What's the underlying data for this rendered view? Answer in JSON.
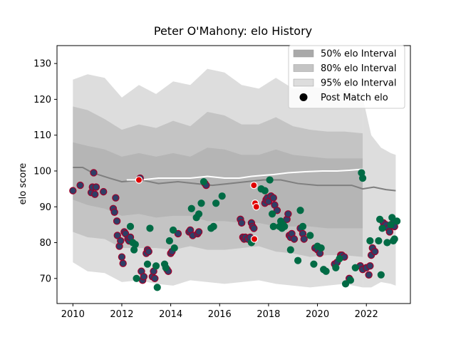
{
  "chart_data": {
    "type": "scatter",
    "title": "Peter O'Mahony: elo History",
    "xlabel": "",
    "ylabel": "elo score",
    "xlim": [
      2009.35,
      2023.8
    ],
    "ylim": [
      63,
      135
    ],
    "x_ticks": [
      2010,
      2012,
      2014,
      2016,
      2018,
      2020,
      2022
    ],
    "y_ticks": [
      70,
      80,
      90,
      100,
      110,
      120,
      130
    ],
    "grid": false,
    "legend_position": "top-right",
    "colors": {
      "band50": "#a9a9a9",
      "band80": "#c4c4c4",
      "band95": "#dddddd",
      "median_line": "#7f7f7f",
      "post_match_line": "#ffffff",
      "dot_navy": "#2f3f66",
      "dot_green": "#006b45",
      "dot_red": "#e00000",
      "dot_edge_crimson": "#a0002a"
    },
    "legend": [
      {
        "label": "50% elo Interval",
        "kind": "patch",
        "color": "#a9a9a9"
      },
      {
        "label": "80% elo Interval",
        "kind": "patch",
        "color": "#c4c4c4"
      },
      {
        "label": "95% elo Interval",
        "kind": "patch",
        "color": "#dddddd"
      },
      {
        "label": "Post Match elo",
        "kind": "marker",
        "color": "#000000"
      }
    ],
    "bands": {
      "x": [
        2010.0,
        2010.6,
        2011.3,
        2012.0,
        2012.7,
        2013.4,
        2014.1,
        2014.8,
        2015.5,
        2016.2,
        2016.9,
        2017.6,
        2018.3,
        2019.0,
        2019.7,
        2020.4,
        2021.1,
        2021.85
      ],
      "band95_upper": [
        125.5,
        127.0,
        126.0,
        120.5,
        124.0,
        121.5,
        125.0,
        124.0,
        128.5,
        127.5,
        124.0,
        123.0,
        126.0,
        123.0,
        123.5,
        123.0,
        122.5,
        121.5
      ],
      "band95_lower": [
        74.5,
        72.0,
        71.5,
        69.0,
        69.5,
        68.5,
        68.0,
        69.5,
        69.0,
        68.5,
        69.0,
        69.5,
        68.5,
        68.0,
        67.5,
        68.0,
        68.5,
        67.5
      ],
      "band80_upper": [
        118.0,
        117.0,
        114.5,
        111.5,
        113.0,
        112.0,
        114.0,
        112.5,
        116.5,
        115.5,
        113.0,
        113.0,
        115.0,
        112.5,
        111.5,
        111.0,
        111.0,
        110.5
      ],
      "band80_lower": [
        83.0,
        81.5,
        81.0,
        78.5,
        78.5,
        78.5,
        78.0,
        79.0,
        78.0,
        78.0,
        78.5,
        79.0,
        77.5,
        77.0,
        76.0,
        76.5,
        76.5,
        76.0
      ],
      "band50_upper": [
        108.0,
        107.0,
        106.0,
        104.0,
        105.0,
        104.0,
        105.0,
        104.0,
        106.5,
        106.0,
        104.5,
        104.5,
        106.0,
        104.5,
        104.0,
        103.5,
        103.5,
        103.5
      ],
      "band50_lower": [
        92.0,
        90.5,
        89.5,
        87.5,
        88.0,
        87.0,
        87.5,
        87.5,
        86.0,
        86.0,
        85.5,
        85.5,
        84.5,
        84.5,
        84.5,
        84.0,
        84.0,
        84.0
      ],
      "tail_x": [
        2021.85,
        2022.2,
        2022.6,
        2023.0,
        2023.2
      ],
      "tail95_upper": [
        120.5,
        110.0,
        106.5,
        105.0,
        104.5
      ],
      "tail95_lower": [
        67.5,
        67.5,
        69.0,
        68.5,
        68.0
      ]
    },
    "median_line": {
      "x": [
        2010.0,
        2010.4,
        2010.8,
        2011.5,
        2012.0,
        2012.8,
        2013.5,
        2014.3,
        2015.0,
        2015.7,
        2016.4,
        2017.1,
        2017.8,
        2018.5,
        2019.2,
        2020.0,
        2020.7,
        2021.4,
        2021.85,
        2022.3,
        2022.8,
        2023.2
      ],
      "y": [
        101.0,
        101.0,
        99.5,
        98.0,
        97.0,
        97.5,
        96.5,
        97.0,
        96.5,
        96.0,
        96.5,
        97.0,
        97.5,
        97.5,
        96.5,
        96.0,
        96.0,
        96.0,
        95.0,
        95.5,
        94.8,
        94.5
      ]
    },
    "post_match_line": {
      "x": [
        2012.2,
        2012.8,
        2013.5,
        2014.2,
        2014.8,
        2015.5,
        2016.2,
        2016.8,
        2017.3,
        2017.8,
        2018.2,
        2018.8,
        2019.5,
        2020.2,
        2020.8,
        2021.3,
        2021.85
      ],
      "y": [
        97.5,
        97.5,
        98.0,
        98.0,
        98.0,
        98.5,
        98.0,
        98.0,
        98.5,
        98.8,
        99.0,
        99.5,
        99.8,
        100.0,
        100.0,
        100.2,
        100.5
      ]
    },
    "points": {
      "navy": [
        [
          2010.0,
          94.5
        ],
        [
          2010.3,
          96.0
        ],
        [
          2010.75,
          94.0
        ],
        [
          2010.8,
          95.5
        ],
        [
          2010.85,
          99.5
        ],
        [
          2010.9,
          93.5
        ],
        [
          2010.95,
          95.5
        ],
        [
          2011.25,
          94.2
        ],
        [
          2011.65,
          89.5
        ],
        [
          2011.7,
          88.5
        ],
        [
          2011.75,
          92.5
        ],
        [
          2011.8,
          86.0
        ],
        [
          2011.82,
          82.0
        ],
        [
          2011.9,
          79.0
        ],
        [
          2011.95,
          80.5
        ],
        [
          2012.0,
          76.0
        ],
        [
          2012.05,
          74.2
        ],
        [
          2012.1,
          83.0
        ],
        [
          2012.15,
          82.5
        ],
        [
          2012.25,
          81.0
        ],
        [
          2012.3,
          80.5
        ],
        [
          2012.35,
          81.5
        ],
        [
          2012.75,
          98.0
        ],
        [
          2012.8,
          72.0
        ],
        [
          2012.85,
          69.5
        ],
        [
          2012.9,
          70.5
        ],
        [
          2013.0,
          77.0
        ],
        [
          2013.05,
          78.0
        ],
        [
          2013.1,
          77.5
        ],
        [
          2013.25,
          70.5
        ],
        [
          2013.3,
          72.0
        ],
        [
          2013.35,
          70.0
        ],
        [
          2013.85,
          72.5
        ],
        [
          2013.9,
          72.0
        ],
        [
          2014.0,
          77.0
        ],
        [
          2014.05,
          77.5
        ],
        [
          2014.3,
          82.5
        ],
        [
          2014.75,
          83.0
        ],
        [
          2014.8,
          83.5
        ],
        [
          2014.9,
          82.0
        ],
        [
          2015.1,
          82.5
        ],
        [
          2015.15,
          83.0
        ],
        [
          2015.4,
          96.5
        ],
        [
          2015.45,
          96.0
        ],
        [
          2016.85,
          86.5
        ],
        [
          2016.9,
          85.5
        ],
        [
          2016.95,
          81.5
        ],
        [
          2017.0,
          81.0
        ],
        [
          2017.05,
          81.5
        ],
        [
          2017.15,
          81.0
        ],
        [
          2017.25,
          81.5
        ],
        [
          2017.3,
          85.5
        ],
        [
          2017.35,
          84.5
        ],
        [
          2017.4,
          84.0
        ],
        [
          2017.85,
          91.0
        ],
        [
          2017.9,
          92.0
        ],
        [
          2017.95,
          92.5
        ],
        [
          2018.0,
          91.5
        ],
        [
          2018.1,
          93.0
        ],
        [
          2018.2,
          92.5
        ],
        [
          2018.25,
          90.5
        ],
        [
          2018.35,
          89.0
        ],
        [
          2018.75,
          86.5
        ],
        [
          2018.8,
          88.0
        ],
        [
          2018.85,
          82.0
        ],
        [
          2018.9,
          81.5
        ],
        [
          2018.95,
          82.5
        ],
        [
          2019.05,
          81.0
        ],
        [
          2019.3,
          84.0
        ],
        [
          2019.4,
          82.5
        ],
        [
          2019.45,
          81.0
        ],
        [
          2019.9,
          78.5
        ],
        [
          2020.0,
          78.0
        ],
        [
          2020.1,
          77.0
        ],
        [
          2020.7,
          74.0
        ],
        [
          2020.8,
          74.5
        ],
        [
          2020.95,
          76.5
        ],
        [
          2021.0,
          76.5
        ],
        [
          2021.1,
          76.0
        ],
        [
          2021.3,
          70.0
        ],
        [
          2021.75,
          73.5
        ],
        [
          2021.85,
          72.5
        ],
        [
          2022.0,
          73.0
        ],
        [
          2022.1,
          71.0
        ],
        [
          2022.15,
          73.5
        ],
        [
          2022.2,
          76.5
        ],
        [
          2022.25,
          78.5
        ],
        [
          2022.35,
          77.5
        ],
        [
          2022.7,
          85.5
        ],
        [
          2022.75,
          84.5
        ],
        [
          2022.8,
          85.0
        ],
        [
          2022.9,
          84.0
        ],
        [
          2022.95,
          83.0
        ],
        [
          2023.1,
          85.5
        ],
        [
          2023.15,
          84.5
        ]
      ],
      "green": [
        [
          2012.35,
          84.5
        ],
        [
          2012.45,
          80.0
        ],
        [
          2012.5,
          78.0
        ],
        [
          2012.55,
          79.5
        ],
        [
          2012.6,
          70.0
        ],
        [
          2013.05,
          74.0
        ],
        [
          2013.15,
          84.0
        ],
        [
          2013.4,
          73.5
        ],
        [
          2013.45,
          67.5
        ],
        [
          2013.75,
          74.0
        ],
        [
          2013.8,
          73.0
        ],
        [
          2013.95,
          80.5
        ],
        [
          2014.15,
          78.5
        ],
        [
          2014.1,
          83.5
        ],
        [
          2014.85,
          89.5
        ],
        [
          2015.05,
          87.0
        ],
        [
          2015.15,
          88.0
        ],
        [
          2015.25,
          91.0
        ],
        [
          2015.35,
          97.0
        ],
        [
          2015.65,
          84.0
        ],
        [
          2015.75,
          84.5
        ],
        [
          2015.85,
          91.0
        ],
        [
          2016.1,
          93.0
        ],
        [
          2017.3,
          80.0
        ],
        [
          2017.7,
          95.0
        ],
        [
          2017.85,
          94.5
        ],
        [
          2018.05,
          97.5
        ],
        [
          2018.15,
          88.0
        ],
        [
          2018.2,
          84.5
        ],
        [
          2018.45,
          84.5
        ],
        [
          2018.5,
          86.0
        ],
        [
          2018.55,
          84.0
        ],
        [
          2018.6,
          85.0
        ],
        [
          2018.65,
          84.5
        ],
        [
          2018.9,
          78.0
        ],
        [
          2019.2,
          75.0
        ],
        [
          2019.3,
          89.0
        ],
        [
          2019.4,
          84.5
        ],
        [
          2019.7,
          82.0
        ],
        [
          2019.85,
          74.0
        ],
        [
          2020.0,
          79.0
        ],
        [
          2020.15,
          78.5
        ],
        [
          2020.25,
          72.5
        ],
        [
          2020.35,
          72.0
        ],
        [
          2020.75,
          73.0
        ],
        [
          2020.9,
          75.5
        ],
        [
          2021.15,
          68.5
        ],
        [
          2021.35,
          69.5
        ],
        [
          2021.55,
          73.0
        ],
        [
          2021.8,
          99.5
        ],
        [
          2021.85,
          98.0
        ],
        [
          2022.15,
          80.5
        ],
        [
          2022.5,
          80.5
        ],
        [
          2022.55,
          86.5
        ],
        [
          2022.6,
          71.0
        ],
        [
          2022.65,
          84.0
        ],
        [
          2022.85,
          80.0
        ],
        [
          2023.0,
          85.0
        ],
        [
          2023.05,
          87.0
        ],
        [
          2023.1,
          80.5
        ],
        [
          2023.15,
          81.0
        ],
        [
          2023.25,
          86.0
        ]
      ],
      "red": [
        [
          2012.7,
          97.5
        ],
        [
          2017.4,
          96.0
        ],
        [
          2017.45,
          91.0
        ],
        [
          2017.5,
          90.0
        ],
        [
          2017.42,
          81.0
        ]
      ]
    }
  }
}
